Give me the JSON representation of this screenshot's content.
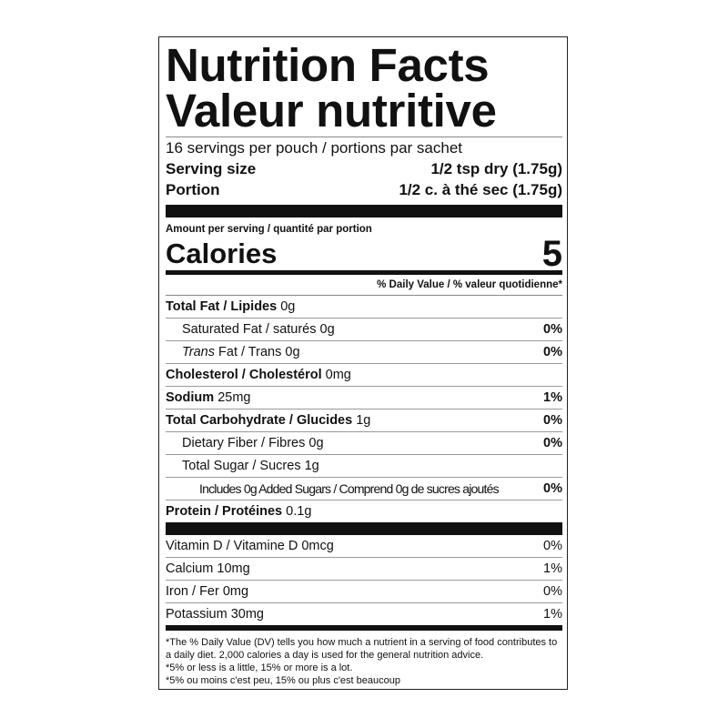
{
  "title_en": "Nutrition Facts",
  "title_fr": "Valeur nutritive",
  "servings": "16 servings per pouch / portions par sachet",
  "serving_size": {
    "label": "Serving size",
    "value": "1/2 tsp dry (1.75g)"
  },
  "portion": {
    "label": "Portion",
    "value": "1/2 c. à thé sec (1.75g)"
  },
  "amount_per_serving": "Amount per serving / quantité par portion",
  "calories": {
    "label": "Calories",
    "value": "5"
  },
  "daily_value_header": "% Daily Value / % valeur quotidienne*",
  "nutrients": [
    {
      "name": "Total Fat / Lipides",
      "amount": "0g",
      "dv": ""
    },
    {
      "name": "Saturated Fat / saturés",
      "amount": "0g",
      "dv": "0%"
    },
    {
      "name_italic": "Trans",
      "name": "Fat / Trans",
      "amount": "0g",
      "dv": "0%"
    },
    {
      "name": "Cholesterol / Cholestérol",
      "amount": "0mg",
      "dv": ""
    },
    {
      "name": "Sodium",
      "amount": "25mg",
      "dv": "1%"
    },
    {
      "name": "Total Carbohydrate / Glucides",
      "amount": "1g",
      "dv": "0%"
    },
    {
      "name": "Dietary Fiber / Fibres",
      "amount": "0g",
      "dv": "0%"
    },
    {
      "name": "Total Sugar / Sucres",
      "amount": "1g",
      "dv": ""
    },
    {
      "name": "Includes 0g Added Sugars / Comprend 0g de sucres ajoutés",
      "amount": "",
      "dv": "0%"
    },
    {
      "name": "Protein / Protéines",
      "amount": "0.1g",
      "dv": ""
    }
  ],
  "vitamins": [
    {
      "name": "Vitamin D / Vitamine D 0mcg",
      "dv": "0%"
    },
    {
      "name": "Calcium 10mg",
      "dv": "1%"
    },
    {
      "name": "Iron / Fer 0mg",
      "dv": "0%"
    },
    {
      "name": "Potassium 30mg",
      "dv": "1%"
    }
  ],
  "footnotes": [
    "*The % Daily Value (DV) tells you how much a nutrient in a serving of food contributes to a daily diet. 2,000 calories a day is used for the general nutrition advice.",
    "*5% or less is a little, 15% or more is a lot.",
    "*5% ou moins c'est peu, 15% ou plus c'est beaucoup"
  ]
}
